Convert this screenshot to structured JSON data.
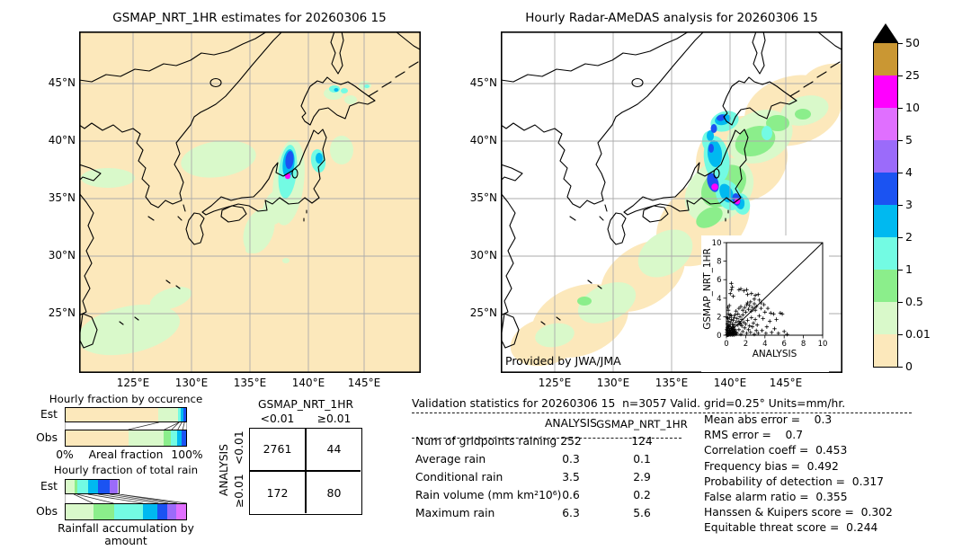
{
  "colors": {
    "peach": "#fce8bb",
    "palegreen": "#d9f9ca",
    "green": "#8bee8b",
    "aqua": "#73fbe3",
    "sky": "#00b9f0",
    "blue": "#1b53f2",
    "purple": "#9b6bfa",
    "orchid": "#e06fff",
    "magenta": "#ff00ff",
    "tan": "#ca9733",
    "grid": "#ababab",
    "coast": "#000000"
  },
  "chart_data": [
    {
      "type": "map",
      "id": "gsmap_map",
      "title": "GSMAP_NRT_1HR estimates for 20260306 15",
      "lon_ticks": [
        "125°E",
        "130°E",
        "135°E",
        "140°E",
        "145°E"
      ],
      "lat_ticks": [
        "45°N",
        "40°N",
        "35°N",
        "30°N",
        "25°N"
      ],
      "background": "peach"
    },
    {
      "type": "map",
      "id": "radar_map",
      "title": "Hourly Radar-AMeDAS analysis for 20260306 15",
      "credit": "Provided by JWA/JMA",
      "lon_ticks": [
        "125°E",
        "130°E",
        "135°E",
        "140°E",
        "145°E"
      ],
      "lat_ticks": [
        "45°N",
        "40°N",
        "35°N",
        "30°N",
        "25°N"
      ],
      "background": "white",
      "inset": {
        "type": "scatter",
        "xlabel": "ANALYSIS",
        "ylabel": "GSMAP_NRT_1HR",
        "xlim": [
          0,
          10
        ],
        "ylim": [
          0,
          10
        ],
        "ticks": [
          "0",
          "2",
          "4",
          "6",
          "8",
          "10"
        ],
        "diagonal": true,
        "points": [
          [
            0.05,
            0.05
          ],
          [
            0.1,
            0.02
          ],
          [
            0.1,
            0.15
          ],
          [
            0.15,
            0.05
          ],
          [
            0.2,
            0.1
          ],
          [
            0.2,
            0.3
          ],
          [
            0.25,
            0.05
          ],
          [
            0.3,
            0.15
          ],
          [
            0.3,
            0.45
          ],
          [
            0.35,
            0.1
          ],
          [
            0.4,
            0.05
          ],
          [
            0.4,
            0.25
          ],
          [
            0.45,
            0.5
          ],
          [
            0.5,
            0.1
          ],
          [
            0.5,
            0.35
          ],
          [
            0.55,
            0.2
          ],
          [
            0.6,
            0.05
          ],
          [
            0.6,
            0.5
          ],
          [
            0.65,
            0.3
          ],
          [
            0.7,
            0.1
          ],
          [
            0.7,
            0.6
          ],
          [
            0.75,
            0.25
          ],
          [
            0.8,
            0.05
          ],
          [
            0.8,
            0.4
          ],
          [
            0.85,
            0.65
          ],
          [
            0.9,
            0.2
          ],
          [
            0.9,
            0.5
          ],
          [
            0.95,
            0.1
          ],
          [
            1.0,
            0.3
          ],
          [
            0.05,
            0.3
          ],
          [
            0.1,
            0.5
          ],
          [
            0.15,
            0.7
          ],
          [
            0.2,
            0.9
          ],
          [
            0.05,
            0.6
          ],
          [
            0.1,
            0.8
          ],
          [
            0.3,
            0.7
          ],
          [
            0.4,
            0.9
          ],
          [
            0.5,
            0.7
          ],
          [
            0.6,
            0.9
          ],
          [
            0.25,
            1.0
          ],
          [
            0.7,
            0.85
          ],
          [
            0.15,
            0.35
          ],
          [
            0.35,
            0.55
          ],
          [
            0.55,
            0.75
          ],
          [
            0.45,
            0.15
          ],
          [
            0.1,
            1.2
          ],
          [
            0.2,
            1.5
          ],
          [
            0.3,
            1.1
          ],
          [
            0.3,
            1.9
          ],
          [
            0.4,
            1.4
          ],
          [
            0.5,
            1.7
          ],
          [
            0.5,
            2.1
          ],
          [
            0.6,
            1.2
          ],
          [
            0.7,
            1.6
          ],
          [
            0.8,
            1.9
          ],
          [
            0.8,
            1.1
          ],
          [
            0.9,
            2.2
          ],
          [
            1.0,
            1.4
          ],
          [
            1.1,
            1.8
          ],
          [
            1.2,
            1.1
          ],
          [
            1.2,
            2.3
          ],
          [
            1.3,
            1.5
          ],
          [
            1.4,
            2.0
          ],
          [
            1.5,
            1.2
          ],
          [
            1.6,
            1.7
          ],
          [
            1.7,
            2.2
          ],
          [
            1.8,
            1.4
          ],
          [
            0.2,
            2.3
          ],
          [
            0.4,
            2.2
          ],
          [
            0.15,
            1.8
          ],
          [
            0.1,
            1.9
          ],
          [
            0.2,
            2.7
          ],
          [
            0.3,
            3.2
          ],
          [
            0.15,
            3.0
          ],
          [
            1.0,
            2.6
          ],
          [
            1.3,
            2.9
          ],
          [
            1.5,
            3.1
          ],
          [
            1.7,
            2.7
          ],
          [
            1.9,
            3.0
          ],
          [
            2.0,
            2.5
          ],
          [
            2.1,
            3.3
          ],
          [
            2.3,
            2.8
          ],
          [
            2.4,
            3.2
          ],
          [
            2.6,
            2.6
          ],
          [
            2.7,
            3.0
          ],
          [
            2.9,
            3.4
          ],
          [
            3.0,
            2.7
          ],
          [
            3.1,
            3.1
          ],
          [
            2.2,
            3.5
          ],
          [
            2.5,
            3.6
          ],
          [
            0.5,
            5.6
          ],
          [
            0.6,
            5.2
          ],
          [
            0.5,
            4.9
          ],
          [
            0.4,
            4.5
          ],
          [
            1.3,
            4.9
          ],
          [
            1.5,
            5.0
          ],
          [
            1.8,
            4.8
          ],
          [
            2.1,
            4.9
          ],
          [
            2.2,
            4.4
          ],
          [
            2.6,
            4.5
          ],
          [
            3.0,
            4.3
          ],
          [
            2.9,
            3.9
          ],
          [
            3.3,
            4.4
          ],
          [
            3.4,
            3.8
          ],
          [
            0.7,
            4.2
          ],
          [
            3.6,
            2.9
          ],
          [
            3.8,
            1.8
          ],
          [
            4.0,
            2.5
          ],
          [
            4.2,
            0.9
          ],
          [
            4.3,
            2.9
          ],
          [
            4.5,
            1.5
          ],
          [
            4.7,
            0.3
          ],
          [
            4.9,
            2.3
          ],
          [
            5.0,
            0.7
          ],
          [
            5.2,
            1.7
          ],
          [
            5.4,
            0.2
          ],
          [
            5.6,
            2.4
          ],
          [
            5.8,
            2.3
          ],
          [
            6.0,
            0.4
          ],
          [
            6.3,
            0.1
          ],
          [
            3.7,
            0.5
          ],
          [
            4.1,
            0.2
          ],
          [
            4.6,
            2.4
          ],
          [
            3.9,
            3.3
          ],
          [
            3.6,
            3.5
          ],
          [
            1.1,
            0.2
          ],
          [
            1.3,
            0.6
          ],
          [
            1.5,
            0.1
          ],
          [
            1.7,
            0.4
          ],
          [
            1.9,
            0.8
          ],
          [
            2.1,
            0.2
          ],
          [
            2.3,
            0.6
          ],
          [
            2.5,
            0.3
          ],
          [
            2.7,
            0.9
          ],
          [
            2.9,
            0.1
          ],
          [
            3.1,
            0.5
          ],
          [
            3.3,
            0.2
          ],
          [
            2.0,
            1.2
          ],
          [
            2.2,
            1.6
          ],
          [
            2.4,
            1.0
          ],
          [
            2.6,
            1.9
          ],
          [
            2.8,
            1.3
          ],
          [
            3.0,
            1.7
          ],
          [
            3.2,
            1.1
          ],
          [
            3.4,
            2.1
          ],
          [
            1.6,
            1.0
          ],
          [
            1.4,
            1.3
          ]
        ]
      }
    },
    {
      "type": "colorbar",
      "id": "rain_colorbar",
      "tick_labels_top_to_bottom": [
        "50",
        "25",
        "10",
        "5",
        "4",
        "3",
        "2",
        "1",
        "0.5",
        "0.01",
        "0"
      ],
      "segment_colors_top_to_bottom": [
        "tan",
        "magenta",
        "orchid",
        "purple",
        "blue",
        "sky",
        "aqua",
        "green",
        "palegreen",
        "peach"
      ],
      "overflow_arrow_color": "black"
    },
    {
      "type": "bar",
      "id": "occurrence",
      "title": "Hourly fraction by occurence",
      "xlabel": "Areal fraction",
      "x_ticks": [
        "0%",
        "100%"
      ],
      "rows": [
        {
          "label": "Est",
          "segments": [
            {
              "c": "peach",
              "v": 77
            },
            {
              "c": "palegreen",
              "v": 16.5
            },
            {
              "c": "aqua",
              "v": 2.2
            },
            {
              "c": "sky",
              "v": 2.2
            },
            {
              "c": "blue",
              "v": 2.1
            }
          ]
        },
        {
          "label": "Obs",
          "segments": [
            {
              "c": "peach",
              "v": 52
            },
            {
              "c": "palegreen",
              "v": 29.5
            },
            {
              "c": "green",
              "v": 6
            },
            {
              "c": "aqua",
              "v": 5
            },
            {
              "c": "sky",
              "v": 4
            },
            {
              "c": "blue",
              "v": 3.5
            }
          ]
        }
      ]
    },
    {
      "type": "bar",
      "id": "totalrain",
      "title": "Hourly fraction of total rain",
      "caption": "Rainfall accumulation by amount",
      "rows": [
        {
          "label": "Est",
          "segments": [
            {
              "c": "palegreen",
              "v": 7.5
            },
            {
              "c": "green",
              "v": 2.5
            },
            {
              "c": "aqua",
              "v": 9
            },
            {
              "c": "sky",
              "v": 8.5
            },
            {
              "c": "blue",
              "v": 9.5
            },
            {
              "c": "purple",
              "v": 7.5
            }
          ]
        },
        {
          "label": "Obs",
          "segments": [
            {
              "c": "palegreen",
              "v": 23
            },
            {
              "c": "green",
              "v": 17
            },
            {
              "c": "aqua",
              "v": 24
            },
            {
              "c": "sky",
              "v": 12.5
            },
            {
              "c": "blue",
              "v": 8
            },
            {
              "c": "purple",
              "v": 7.5
            },
            {
              "c": "orchid",
              "v": 8
            }
          ]
        }
      ]
    },
    {
      "type": "table",
      "id": "contingency",
      "col_title": "GSMAP_NRT_1HR",
      "row_title": "ANALYSIS",
      "col_labels": [
        "<0.01",
        "≥0.01"
      ],
      "row_labels": [
        "<0.01",
        "≥0.01"
      ],
      "values": [
        [
          "2761",
          "44"
        ],
        [
          "172",
          "80"
        ]
      ]
    },
    {
      "type": "table",
      "id": "validation",
      "title": "Validation statistics for 20260306 15  n=3057 Valid. grid=0.25° Units=mm/hr.",
      "columns": [
        "ANALYSIS",
        "GSMAP_NRT_1HR"
      ],
      "rows": [
        [
          "Num of gridpoints raining",
          "252",
          "124"
        ],
        [
          "Average rain",
          "0.3",
          "0.1"
        ],
        [
          "Conditional rain",
          "3.5",
          "2.9"
        ],
        [
          "Rain volume (mm km²10⁶)",
          "0.6",
          "0.2"
        ],
        [
          "Maximum rain",
          "6.3",
          "5.6"
        ]
      ]
    },
    {
      "type": "list",
      "id": "scores",
      "items": [
        [
          "Mean abs error",
          "0.3"
        ],
        [
          "RMS error",
          "0.7"
        ],
        [
          "Correlation coeff",
          "0.453"
        ],
        [
          "Frequency bias",
          "0.492"
        ],
        [
          "Probability of detection",
          "0.317"
        ],
        [
          "False alarm ratio",
          "0.355"
        ],
        [
          "Hanssen & Kuipers score",
          "0.302"
        ],
        [
          "Equitable threat score",
          "0.244"
        ]
      ]
    }
  ]
}
